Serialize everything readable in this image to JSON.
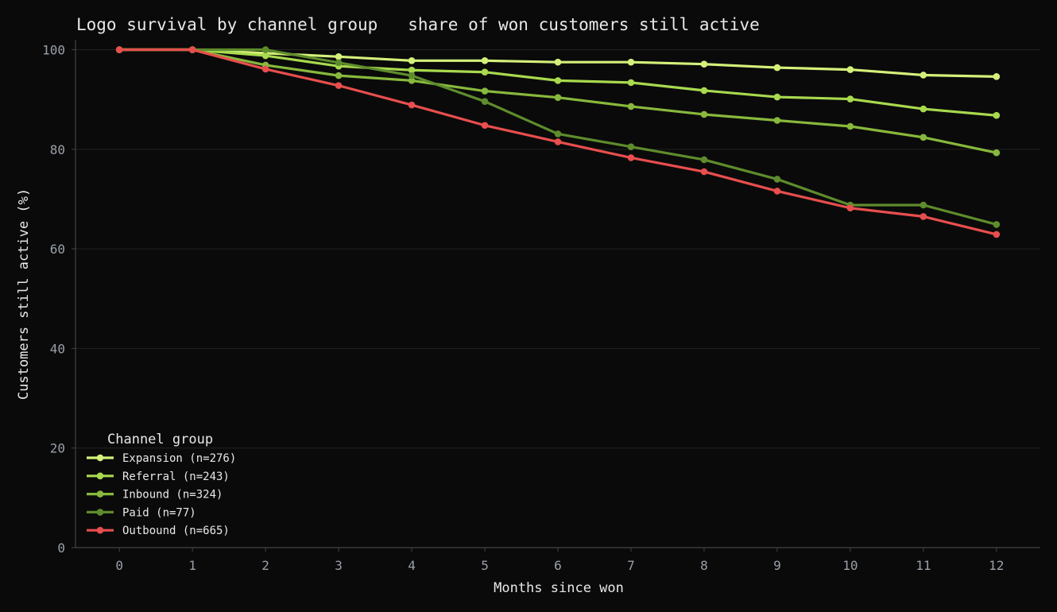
{
  "chart_data": {
    "type": "line",
    "title": "Logo survival by channel group   share of won customers still active",
    "xlabel": "Months since won",
    "ylabel": "Customers still active (%)",
    "x": [
      0,
      1,
      2,
      3,
      4,
      5,
      6,
      7,
      8,
      9,
      10,
      11,
      12
    ],
    "xlim": [
      -0.6,
      12.6
    ],
    "ylim": [
      0,
      102
    ],
    "yticks": [
      0,
      20,
      40,
      60,
      80,
      100
    ],
    "grid": "horizontal",
    "legend": {
      "title": "Channel group",
      "placement": "lower-left"
    },
    "series": [
      {
        "name": "Expansion (n=276)",
        "color": "#d4f07a",
        "values": [
          100,
          100,
          99.3,
          98.6,
          97.8,
          97.8,
          97.5,
          97.5,
          97.1,
          96.4,
          96.0,
          94.9,
          94.6
        ]
      },
      {
        "name": "Referral (n=243)",
        "color": "#a8d94e",
        "values": [
          100,
          100,
          98.8,
          96.7,
          95.9,
          95.5,
          93.8,
          93.4,
          91.8,
          90.5,
          90.1,
          88.1,
          86.8
        ]
      },
      {
        "name": "Inbound (n=324)",
        "color": "#88b83c",
        "values": [
          100,
          100,
          96.9,
          94.8,
          93.8,
          91.7,
          90.4,
          88.6,
          87.0,
          85.8,
          84.6,
          82.4,
          79.3
        ]
      },
      {
        "name": "Paid (n=77)",
        "color": "#5e8c2c",
        "values": [
          100,
          100,
          100,
          97.4,
          94.8,
          89.6,
          83.1,
          80.5,
          77.9,
          74.0,
          68.8,
          68.8,
          64.9
        ]
      },
      {
        "name": "Outbound (n=665)",
        "color": "#e84e4e",
        "values": [
          100,
          100,
          96.1,
          92.8,
          88.9,
          84.8,
          81.5,
          78.3,
          75.5,
          71.6,
          68.2,
          66.5,
          62.9
        ]
      }
    ]
  }
}
